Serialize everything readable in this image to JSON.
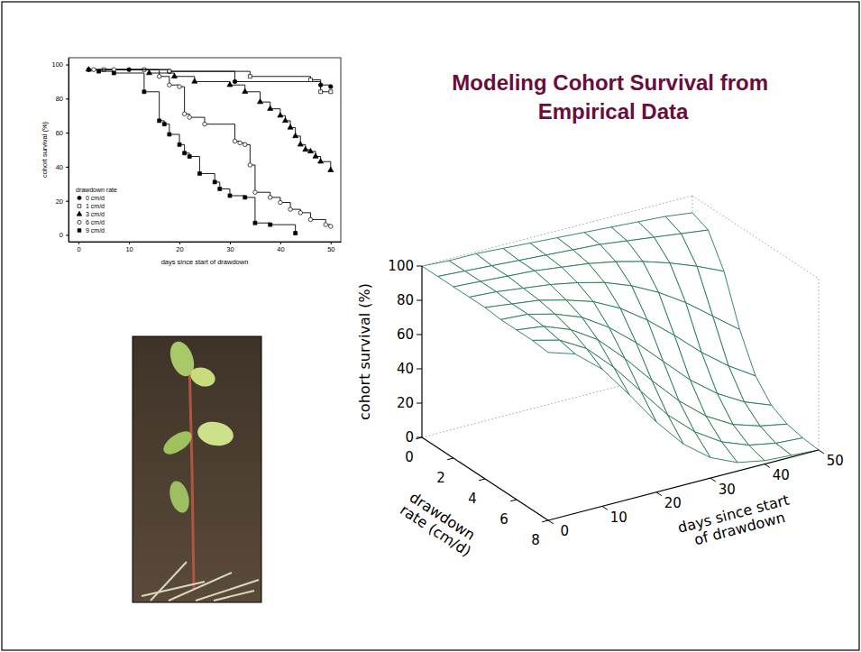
{
  "title": "Modeling Cohort Survival from Empirical Data",
  "chart_data": [
    {
      "type": "line",
      "x_label": "days since start of drawdown",
      "y_label": "cohort survival (%)",
      "xlim": [
        -2,
        52
      ],
      "ylim": [
        -4,
        104
      ],
      "xticks": [
        0,
        10,
        20,
        30,
        40,
        50
      ],
      "yticks": [
        0,
        20,
        40,
        60,
        80,
        100
      ],
      "line_style": "step",
      "legend": "bottom-left",
      "legend_title": "drawdown rate",
      "series": [
        {
          "name": "0 cm/d",
          "color": "#000000",
          "marker": "filled-circle",
          "x": [
            2,
            10,
            18,
            31,
            48,
            50
          ],
          "values": [
            97,
            97,
            96,
            90,
            88,
            87
          ]
        },
        {
          "name": "1 cm/d",
          "color": "#000000",
          "marker": "open-square",
          "x": [
            5,
            13,
            18,
            34,
            46,
            48,
            50
          ],
          "values": [
            97,
            97,
            96,
            93,
            91,
            84,
            84
          ]
        },
        {
          "name": "3 cm/d",
          "color": "#000000",
          "marker": "filled-triangle",
          "x": [
            2,
            14,
            19,
            23,
            30,
            33,
            36,
            38,
            40,
            41,
            42,
            43,
            44,
            45,
            46,
            47,
            48,
            50
          ],
          "values": [
            97,
            95,
            93,
            90,
            88,
            84,
            78,
            74,
            70,
            67,
            63,
            58,
            53,
            50,
            49,
            46,
            43,
            38
          ]
        },
        {
          "name": "6 cm/d",
          "color": "#000000",
          "marker": "open-circle",
          "x": [
            3,
            7,
            16,
            18,
            20,
            21,
            22,
            25,
            31,
            32,
            33,
            34,
            35,
            38,
            40,
            42,
            44,
            46,
            49,
            50
          ],
          "values": [
            97,
            97,
            93,
            88,
            87,
            71,
            69,
            65,
            55,
            54,
            53,
            41,
            25,
            22,
            19,
            15,
            13,
            9,
            6,
            5
          ]
        },
        {
          "name": "9 cm/d",
          "color": "#000000",
          "marker": "filled-square",
          "x": [
            4,
            7,
            13,
            16,
            17,
            18,
            20,
            21,
            22,
            24,
            27,
            28,
            30,
            33,
            35,
            38,
            43
          ],
          "values": [
            96,
            95,
            84,
            67,
            65,
            59,
            53,
            48,
            46,
            36,
            31,
            27,
            23,
            22,
            7,
            6,
            1
          ]
        }
      ]
    },
    {
      "type": "surface",
      "x_label": "days since start of drawdown",
      "y_label": "drawdown rate (cm/d)",
      "z_label": "cohort survival (%)",
      "xlim": [
        0,
        50
      ],
      "ylim": [
        0,
        8
      ],
      "zlim": [
        0,
        100
      ],
      "xticks": [
        0,
        10,
        20,
        30,
        40,
        50
      ],
      "yticks": [
        0,
        2,
        4,
        6,
        8
      ],
      "zticks": [
        0,
        20,
        40,
        60,
        80,
        100
      ],
      "color": "#1e7a4e",
      "x": [
        0,
        5,
        10,
        15,
        20,
        25,
        30,
        35,
        40,
        45,
        50
      ],
      "y": [
        0,
        1,
        2,
        3,
        4,
        5,
        6,
        7,
        8
      ],
      "z": [
        [
          100,
          99,
          99,
          98,
          97,
          96,
          95,
          94,
          93,
          92,
          90
        ],
        [
          100,
          99,
          98,
          97,
          96,
          95,
          94,
          92,
          90,
          88,
          86
        ],
        [
          100,
          99,
          98,
          97,
          95,
          93,
          90,
          86,
          81,
          75,
          68
        ],
        [
          100,
          99,
          97,
          95,
          92,
          88,
          82,
          74,
          64,
          52,
          40
        ],
        [
          100,
          98,
          96,
          92,
          87,
          79,
          68,
          55,
          41,
          29,
          19
        ],
        [
          99,
          98,
          94,
          88,
          78,
          65,
          50,
          35,
          23,
          14,
          8
        ],
        [
          99,
          97,
          91,
          81,
          66,
          49,
          33,
          20,
          11,
          6,
          3
        ],
        [
          99,
          95,
          86,
          71,
          53,
          35,
          21,
          11,
          5,
          2,
          1
        ],
        [
          98,
          93,
          80,
          61,
          41,
          24,
          12,
          5,
          2,
          1,
          0
        ]
      ]
    }
  ]
}
